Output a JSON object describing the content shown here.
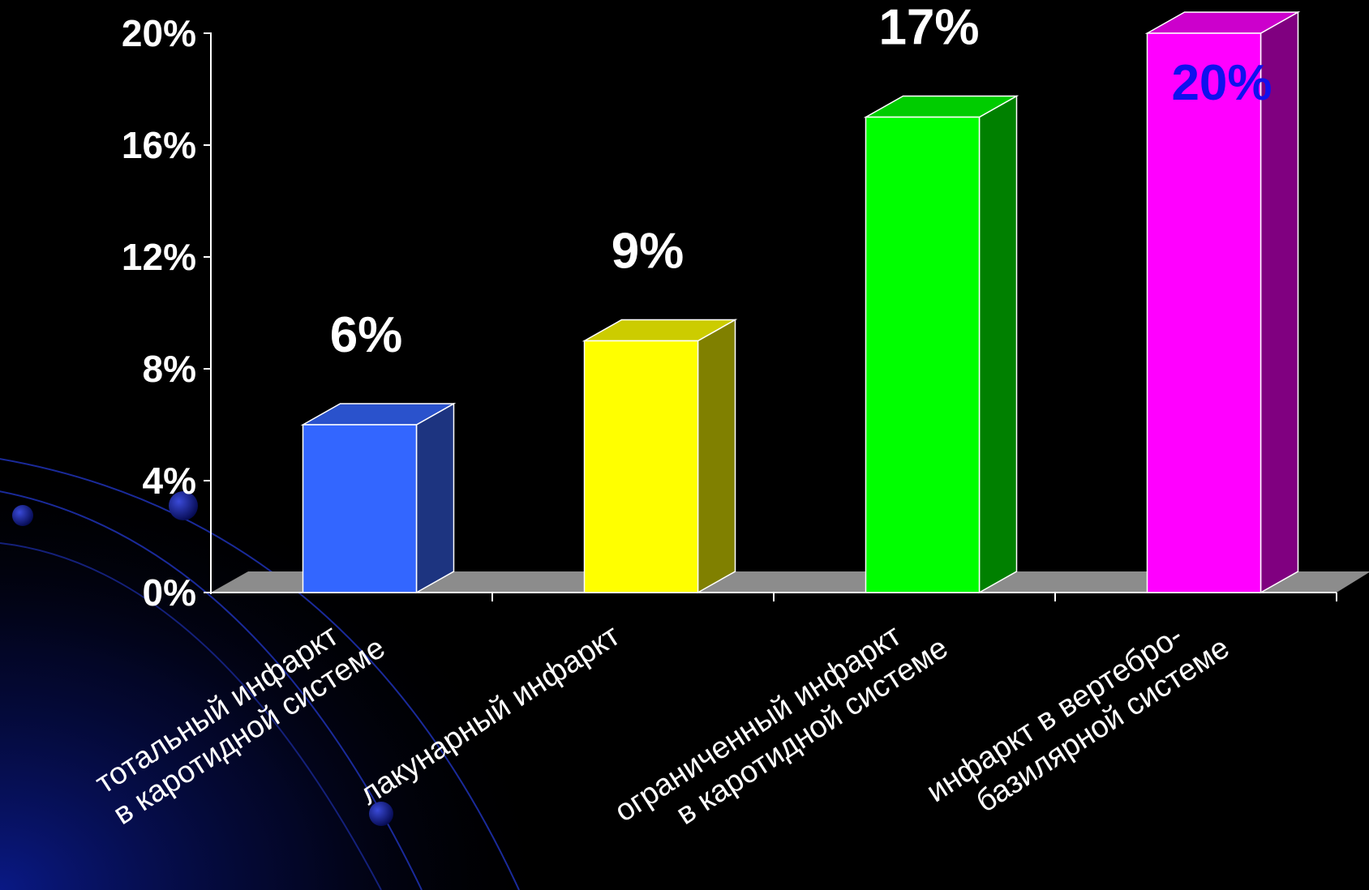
{
  "slide": {
    "background": "#000000",
    "decoration": "dark blue orbital arcs with dots in lower-left corner"
  },
  "chart_data": {
    "type": "bar",
    "style": "3d",
    "categories": [
      [
        "тотальный инфаркт",
        "в каротидной системе"
      ],
      [
        "лакунарный инфаркт"
      ],
      [
        "ограниченный инфаркт",
        "в каротидной системе"
      ],
      [
        "инфаркт в вертебро-",
        "базилярной системе"
      ]
    ],
    "values": [
      6,
      9,
      17,
      20
    ],
    "data_labels": [
      "6%",
      "9%",
      "17%",
      "20%"
    ],
    "label_colors": [
      "#ffffff",
      "#ffffff",
      "#ffffff",
      "#1010ee"
    ],
    "colors": [
      {
        "front": "#3366ff",
        "side": "#1d3480",
        "top": "#2a52cc"
      },
      {
        "front": "#ffff00",
        "side": "#808000",
        "top": "#cccc00"
      },
      {
        "front": "#00ff00",
        "side": "#008000",
        "top": "#00cc00"
      },
      {
        "front": "#ff00ff",
        "side": "#800080",
        "top": "#cc00cc"
      }
    ],
    "yticks": [
      "0%",
      "4%",
      "8%",
      "12%",
      "16%",
      "20%"
    ],
    "ylim": [
      0,
      20
    ],
    "legend": "none",
    "grid": false,
    "title": "",
    "xlabel": "",
    "ylabel": ""
  }
}
